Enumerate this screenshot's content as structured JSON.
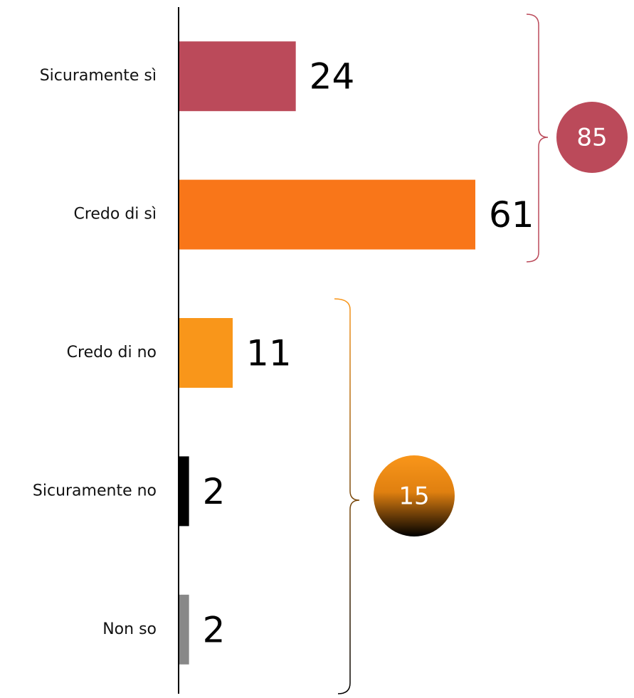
{
  "chart_data": {
    "type": "barh",
    "categories": [
      "Sicuramente sì",
      "Credo di sì",
      "Credo di no",
      "Sicuramente no",
      "Non so"
    ],
    "values": [
      24,
      61,
      11,
      2,
      2
    ],
    "colors": [
      "#bb4a5a",
      "#f97619",
      "#f9961a",
      "#000000",
      "#888888"
    ],
    "annotations": [
      85,
      15
    ]
  }
}
